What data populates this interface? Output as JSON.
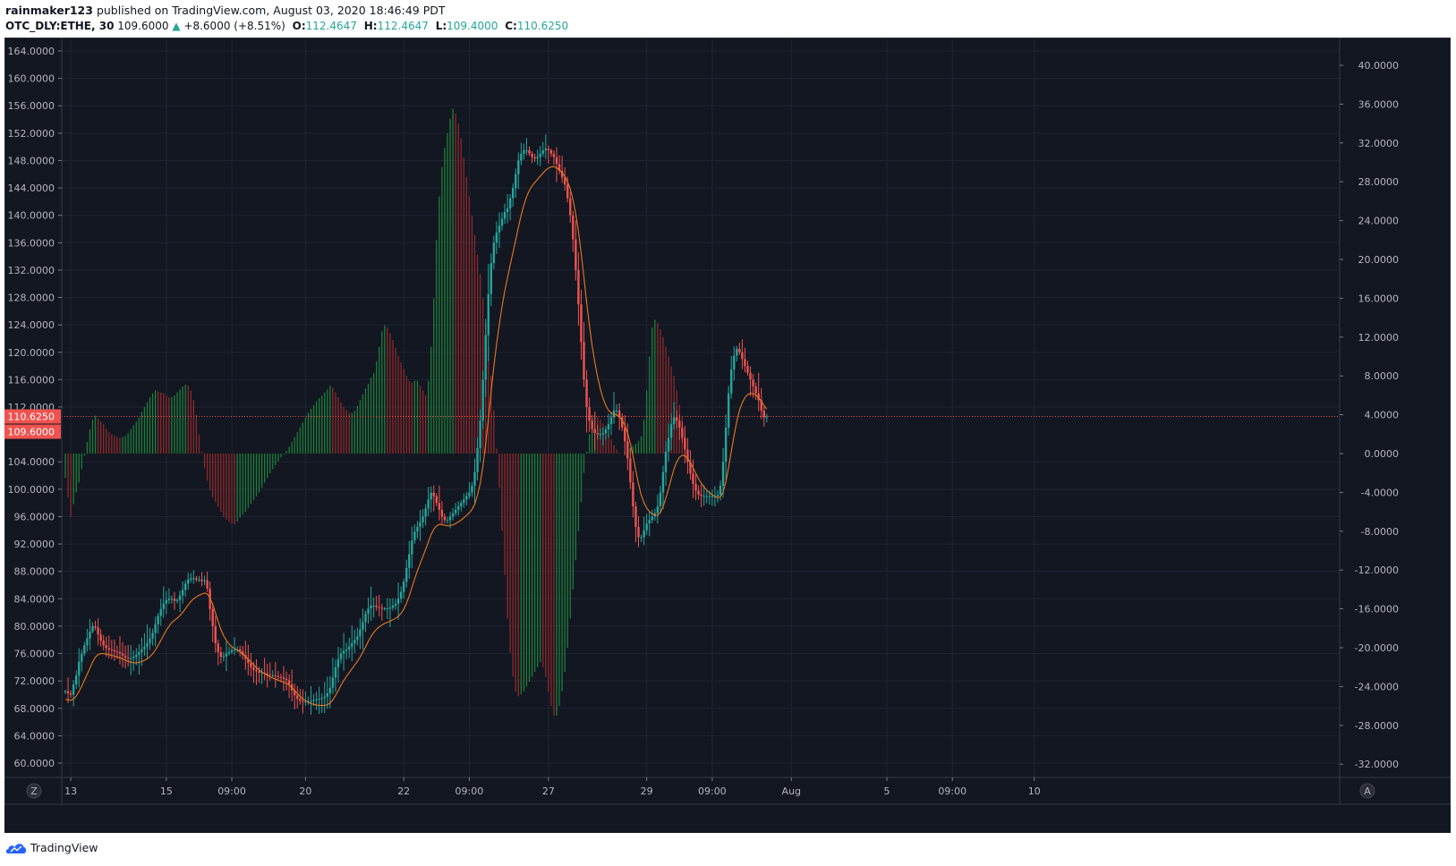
{
  "header": {
    "user": "rainmaker123",
    "published_text": "published on TradingView.com, August 03, 2020 18:46:49 PDT",
    "symbol": "OTC_DLY:ETHE, 30",
    "last_price": "109.6000",
    "up_arrow": "▲",
    "change": "+8.6000 (+8.51%)",
    "o_label": "O:",
    "o_value": "112.4647",
    "h_label": "H:",
    "h_value": "112.4647",
    "l_label": "L:",
    "l_value": "109.4000",
    "c_label": "C:",
    "c_value": "110.6250"
  },
  "footer": {
    "brand": "TradingView"
  },
  "buttons": {
    "z_label": "Z",
    "a_label": "A"
  },
  "colors": {
    "background": "#131722",
    "grid": "#1f2434",
    "up": "#26a69a",
    "down": "#ef5350",
    "hist_up": "#1f8a3b",
    "hist_down": "#9c2b2b",
    "ma": "#e8791e",
    "price_line": "#ef5350"
  },
  "chart_data": {
    "type": "candlestick",
    "symbol": "OTC_DLY:ETHE",
    "interval": "30",
    "price_axis": {
      "side": "left",
      "ylim": [
        58,
        166
      ],
      "ticks": [
        "60.0000",
        "64.0000",
        "68.0000",
        "72.0000",
        "76.0000",
        "80.0000",
        "84.0000",
        "88.0000",
        "92.0000",
        "96.0000",
        "100.0000",
        "104.0000",
        "112.0000",
        "116.0000",
        "120.0000",
        "124.0000",
        "128.0000",
        "132.0000",
        "136.0000",
        "140.0000",
        "144.0000",
        "148.0000",
        "152.0000",
        "156.0000",
        "160.0000",
        "164.0000"
      ]
    },
    "indicator_axis": {
      "side": "right",
      "ylim": [
        -35.5,
        42.5
      ],
      "ticks": [
        "-32.0000",
        "-28.0000",
        "-24.0000",
        "-20.0000",
        "-16.0000",
        "-12.0000",
        "-8.0000",
        "-4.0000",
        "0.0000",
        "4.0000",
        "8.0000",
        "12.0000",
        "16.0000",
        "20.0000",
        "24.0000",
        "28.0000",
        "32.0000",
        "36.0000",
        "40.0000"
      ]
    },
    "time_axis": {
      "ticks": [
        {
          "label": "13",
          "idx": 2
        },
        {
          "label": "15",
          "idx": 37
        },
        {
          "label": "09:00",
          "idx": 61
        },
        {
          "label": "20",
          "idx": 88
        },
        {
          "label": "22",
          "idx": 124
        },
        {
          "label": "09:00",
          "idx": 148
        },
        {
          "label": "27",
          "idx": 177
        },
        {
          "label": "29",
          "idx": 213
        },
        {
          "label": "09:00",
          "idx": 237
        },
        {
          "label": "Aug",
          "idx": 266
        },
        {
          "label": "5",
          "idx": 301
        },
        {
          "label": "09:00",
          "idx": 325
        },
        {
          "label": "10",
          "idx": 355
        }
      ]
    },
    "price_labels": [
      {
        "value": 110.625,
        "text": "110.6250"
      },
      {
        "value": 109.6,
        "text": "109.6000"
      }
    ],
    "grid": true,
    "legend": "none",
    "candles": [
      70.5,
      70.2,
      70.0,
      71.5,
      72.8,
      74.8,
      76.0,
      77.2,
      78.2,
      79.2,
      80.0,
      79.8,
      78.8,
      77.9,
      77.2,
      76.8,
      76.6,
      76.5,
      76.3,
      76.2,
      76.0,
      75.7,
      75.4,
      75.3,
      75.3,
      75.5,
      75.8,
      76.2,
      76.6,
      77.0,
      77.5,
      78.2,
      79.0,
      80.3,
      81.5,
      82.5,
      83.3,
      83.8,
      84.0,
      84.0,
      83.7,
      83.8,
      84.5,
      85.3,
      86.2,
      86.8,
      87.0,
      87.0,
      86.8,
      86.8,
      86.6,
      86.7,
      85.5,
      82.5,
      80.0,
      77.5,
      76.2,
      75.5,
      75.6,
      76.0,
      76.2,
      76.5,
      76.6,
      76.6,
      76.3,
      75.8,
      75.2,
      74.6,
      74.0,
      73.6,
      73.4,
      73.2,
      73.2,
      73.1,
      72.9,
      72.8,
      72.8,
      72.7,
      72.6,
      72.5,
      72.3,
      72.1,
      71.5,
      70.6,
      69.9,
      69.4,
      69.1,
      69.0,
      69.0,
      69.0,
      69.1,
      69.2,
      69.3,
      69.4,
      69.5,
      69.7,
      70.2,
      71.0,
      72.5,
      74.0,
      75.2,
      76.0,
      76.4,
      76.6,
      77.0,
      77.5,
      78.0,
      78.5,
      79.5,
      80.6,
      81.8,
      82.6,
      83.0,
      83.0,
      82.8,
      82.7,
      82.6,
      82.6,
      82.6,
      82.7,
      83.0,
      83.3,
      84.0,
      85.0,
      86.5,
      88.5,
      90.5,
      92.5,
      93.8,
      94.5,
      95.2,
      96.0,
      97.2,
      98.5,
      99.5,
      99.0,
      98.0,
      97.0,
      96.0,
      95.5,
      95.5,
      96.0,
      96.5,
      97.0,
      97.5,
      98.0,
      98.5,
      99.0,
      99.5,
      100.5,
      102.5,
      106.0,
      110.0,
      116.0,
      122.5,
      128.5,
      133.0,
      136.0,
      137.5,
      138.5,
      139.5,
      140.5,
      141.0,
      142.5,
      144.0,
      146.0,
      148.0,
      149.0,
      149.5,
      149.5,
      149.0,
      148.5,
      148.3,
      148.5,
      149.0,
      149.5,
      149.7,
      149.5,
      149.0,
      148.5,
      147.5,
      146.5,
      145.5,
      144.5,
      142.5,
      140.0,
      136.5,
      132.0,
      127.0,
      121.5,
      116.0,
      112.0,
      110.0,
      108.8,
      108.2,
      108.0,
      108.0,
      108.2,
      108.7,
      109.5,
      110.5,
      111.5,
      111.5,
      110.5,
      109.0,
      107.0,
      104.5,
      101.0,
      97.5,
      94.5,
      93.0,
      93.0,
      94.0,
      95.0,
      95.5,
      96.0,
      96.5,
      97.5,
      99.5,
      102.5,
      105.5,
      107.5,
      109.5,
      110.5,
      110.0,
      109.0,
      107.5,
      105.8,
      104.0,
      102.3,
      100.8,
      99.8,
      99.2,
      99.0,
      99.0,
      99.0,
      99.0,
      99.0,
      99.0,
      99.2,
      100.5,
      104.0,
      109.0,
      114.0,
      117.5,
      119.5,
      120.5,
      120.0,
      119.0,
      118.0,
      117.0,
      116.0,
      115.0,
      114.0,
      113.0,
      111.5,
      110.5,
      110.6
    ],
    "moving_average": "smoothed trailing average of closes",
    "histogram": [
      -2.5,
      -4.5,
      -6.5,
      -5.2,
      -4.0,
      -3.0,
      -1.6,
      -0.2,
      1.2,
      2.5,
      3.5,
      3.9,
      3.6,
      3.3,
      3.0,
      2.6,
      2.2,
      2.0,
      1.8,
      1.7,
      1.6,
      1.7,
      1.8,
      2.1,
      2.5,
      2.9,
      3.3,
      3.7,
      4.3,
      4.8,
      5.3,
      5.8,
      6.2,
      6.5,
      6.4,
      6.3,
      6.2,
      6.0,
      5.8,
      5.8,
      6.0,
      6.3,
      6.6,
      6.9,
      7.1,
      7.0,
      6.5,
      5.5,
      4.0,
      2.0,
      0.2,
      -1.5,
      -2.8,
      -3.8,
      -4.5,
      -5.0,
      -5.5,
      -6.0,
      -6.5,
      -6.8,
      -7.0,
      -7.2,
      -7.3,
      -7.0,
      -6.6,
      -6.3,
      -6.0,
      -5.6,
      -5.2,
      -4.8,
      -4.4,
      -4.0,
      -3.5,
      -3.0,
      -2.5,
      -2.0,
      -1.6,
      -1.2,
      -0.8,
      -0.4,
      -0.1,
      0.3,
      0.7,
      1.2,
      1.7,
      2.2,
      2.7,
      3.2,
      3.7,
      4.2,
      4.6,
      5.0,
      5.4,
      5.7,
      6.0,
      6.3,
      6.6,
      7.0,
      6.8,
      6.3,
      5.8,
      5.3,
      4.8,
      4.5,
      4.2,
      4.2,
      4.4,
      4.9,
      5.5,
      6.1,
      6.7,
      7.2,
      7.8,
      8.3,
      9.5,
      11.0,
      12.6,
      13.2,
      13.0,
      12.4,
      11.7,
      10.9,
      10.1,
      9.4,
      8.7,
      8.0,
      7.5,
      7.3,
      7.5,
      7.5,
      7.0,
      6.5,
      6.0,
      7.5,
      11.0,
      16.0,
      22.0,
      26.5,
      29.5,
      31.5,
      33.0,
      34.5,
      35.5,
      35.0,
      34.0,
      32.5,
      30.5,
      28.5,
      26.5,
      24.5,
      22.5,
      20.5,
      18.5,
      16.0,
      13.5,
      11.0,
      8.0,
      4.5,
      0.5,
      -3.5,
      -8.0,
      -12.5,
      -17.0,
      -20.5,
      -23.0,
      -24.5,
      -25.0,
      -24.8,
      -24.5,
      -24.0,
      -23.5,
      -23.0,
      -22.5,
      -22.0,
      -21.5,
      -22.0,
      -23.0,
      -24.5,
      -26.0,
      -27.0,
      -27.0,
      -26.0,
      -24.5,
      -22.5,
      -20.0,
      -17.0,
      -14.0,
      -11.0,
      -8.0,
      -5.0,
      -2.0,
      0.2,
      2.0,
      3.5,
      4.0,
      3.8,
      3.5,
      3.1,
      2.6,
      2.1,
      1.5,
      0.9,
      0.4,
      0.1,
      0.0,
      0.2,
      0.4,
      0.6,
      0.8,
      1.0,
      1.3,
      1.8,
      3.5,
      6.5,
      10.0,
      13.0,
      13.8,
      13.5,
      12.8,
      12.0,
      11.0,
      10.0,
      9.0,
      8.0,
      6.5,
      5.0,
      3.8,
      2.5
    ]
  }
}
